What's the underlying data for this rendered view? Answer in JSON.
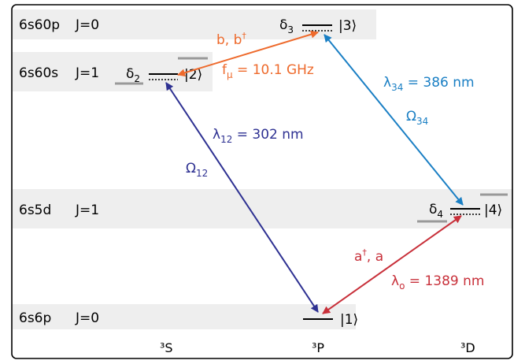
{
  "diagram": {
    "bands": [
      {
        "id": "6s60p",
        "config": "6s60p",
        "j": "J=0"
      },
      {
        "id": "6s60s",
        "config": "6s60s",
        "j": "J=1"
      },
      {
        "id": "6s5d",
        "config": "6s5d",
        "j": "J=1"
      },
      {
        "id": "6s6p",
        "config": "6s6p",
        "j": "J=0"
      }
    ],
    "columns": [
      "³S",
      "³P",
      "³D"
    ],
    "states": {
      "s1": "|1⟩",
      "s2": "|2⟩",
      "s3": "|3⟩",
      "s4": "|4⟩"
    },
    "detunings": {
      "d2": "δ",
      "d2_sub": "2",
      "d3": "δ",
      "d3_sub": "3",
      "d4": "δ",
      "d4_sub": "4"
    },
    "transitions": {
      "t12": {
        "lambda_sym": "λ",
        "lambda_sub": "12",
        "lambda_val": " = 302 nm",
        "rabi_sym": "Ω",
        "rabi_sub": "12",
        "color": "#2e3192"
      },
      "t34": {
        "lambda_sym": "λ",
        "lambda_sub": "34",
        "lambda_val": " = 386 nm",
        "rabi_sym": "Ω",
        "rabi_sub": "34",
        "color": "#1a7fc4"
      },
      "t23": {
        "ops": "b, b",
        "ops_sup": "†",
        "freq_sym": "f",
        "freq_sub": "μ",
        "freq_val": " = 10.1 GHz",
        "color": "#ee6a2c"
      },
      "t14": {
        "ops": "a",
        "ops_sup": "†",
        "ops_rest": ", a",
        "lambda_sym": "λ",
        "lambda_sub": "o",
        "lambda_val": " = 1389 nm",
        "color": "#c8303a"
      }
    },
    "band_color": "#eeeeee"
  }
}
